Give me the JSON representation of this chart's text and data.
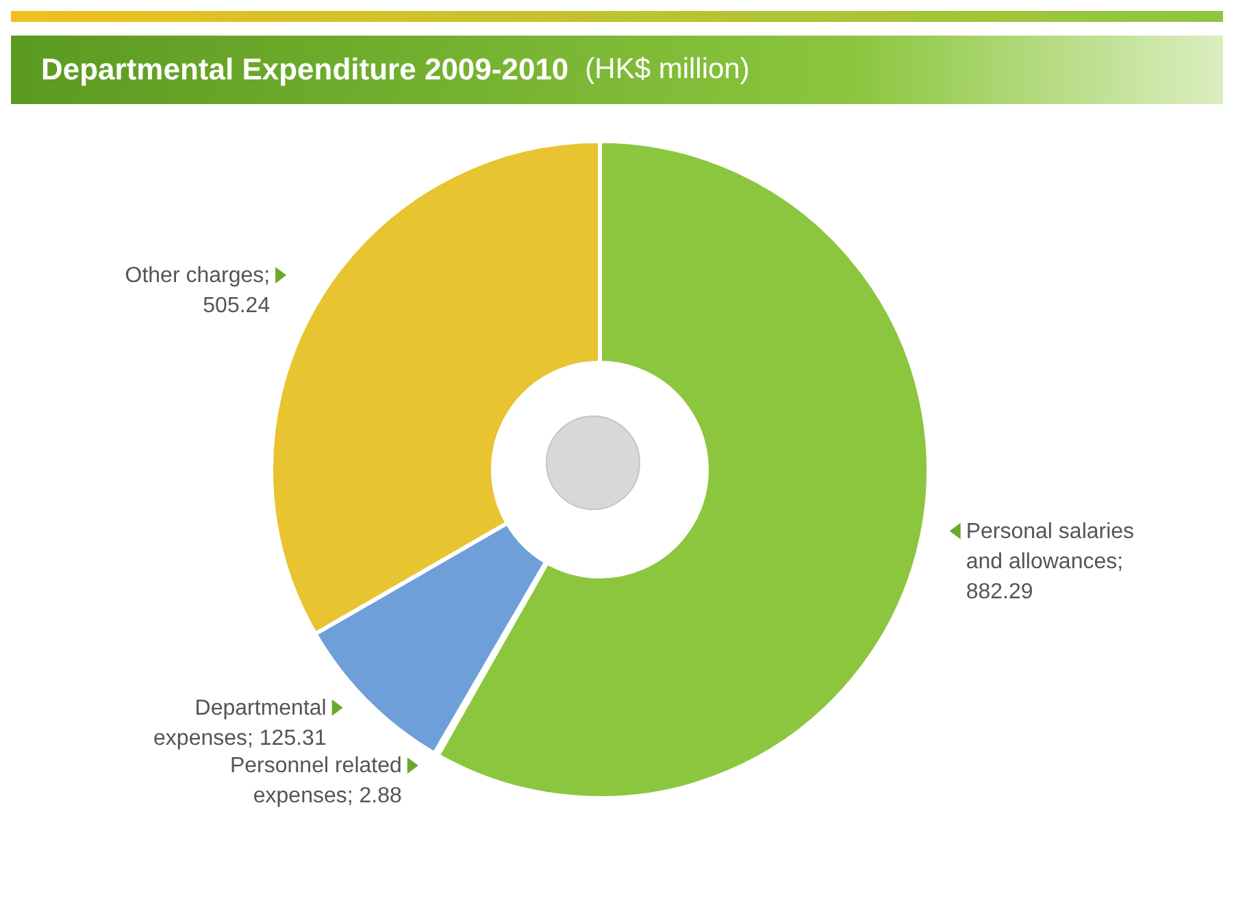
{
  "chart_data": {
    "type": "donut",
    "title": "Departmental Expenditure 2009-2010",
    "subtitle": "(HK$ million)",
    "categories": [
      "Personal salaries and allowances",
      "Personnel related expenses",
      "Departmental expenses",
      "Other charges"
    ],
    "values": [
      882.29,
      2.88,
      125.31,
      505.24
    ],
    "value_labels": [
      "; 882.29",
      "; 2.88",
      "; 125.31",
      "; 505.24"
    ],
    "colors": [
      "#8cc63f",
      "#c8a060",
      "#6f9fd8",
      "#e8c430"
    ]
  }
}
